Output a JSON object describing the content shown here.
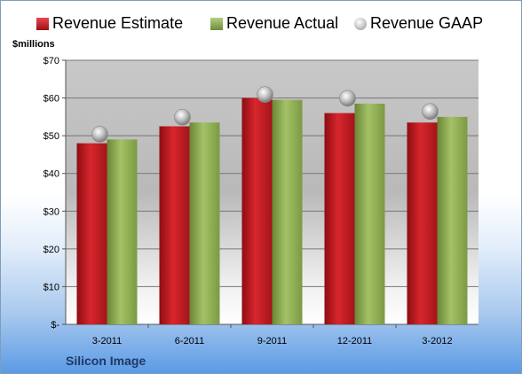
{
  "legend": {
    "estimate": "Revenue Estimate",
    "actual": "Revenue Actual",
    "gaap": "Revenue GAAP"
  },
  "units_label": "$millions",
  "company": "Silicon Image",
  "colors": {
    "estimate": "#c0181f",
    "actual": "#8aab4e",
    "gaap": "#b0b0b0"
  },
  "chart_data": {
    "type": "bar",
    "categories": [
      "3-2011",
      "6-2011",
      "9-2011",
      "12-2011",
      "3-2012"
    ],
    "series": [
      {
        "name": "Revenue Estimate",
        "values": [
          48,
          52.5,
          60,
          56,
          53.5
        ]
      },
      {
        "name": "Revenue Actual",
        "values": [
          49,
          53.5,
          59.5,
          58.5,
          55
        ]
      },
      {
        "name": "Revenue GAAP",
        "values": [
          49,
          53.5,
          59.5,
          58.5,
          55
        ]
      }
    ],
    "ylabel": "$millions",
    "ylim": [
      0,
      70
    ],
    "yticks": [
      0,
      10,
      20,
      30,
      40,
      50,
      60,
      70
    ],
    "ytick_labels": [
      "$-",
      "$10",
      "$20",
      "$30",
      "$40",
      "$50",
      "$60",
      "$70"
    ],
    "grid": true,
    "legend_position": "top"
  }
}
